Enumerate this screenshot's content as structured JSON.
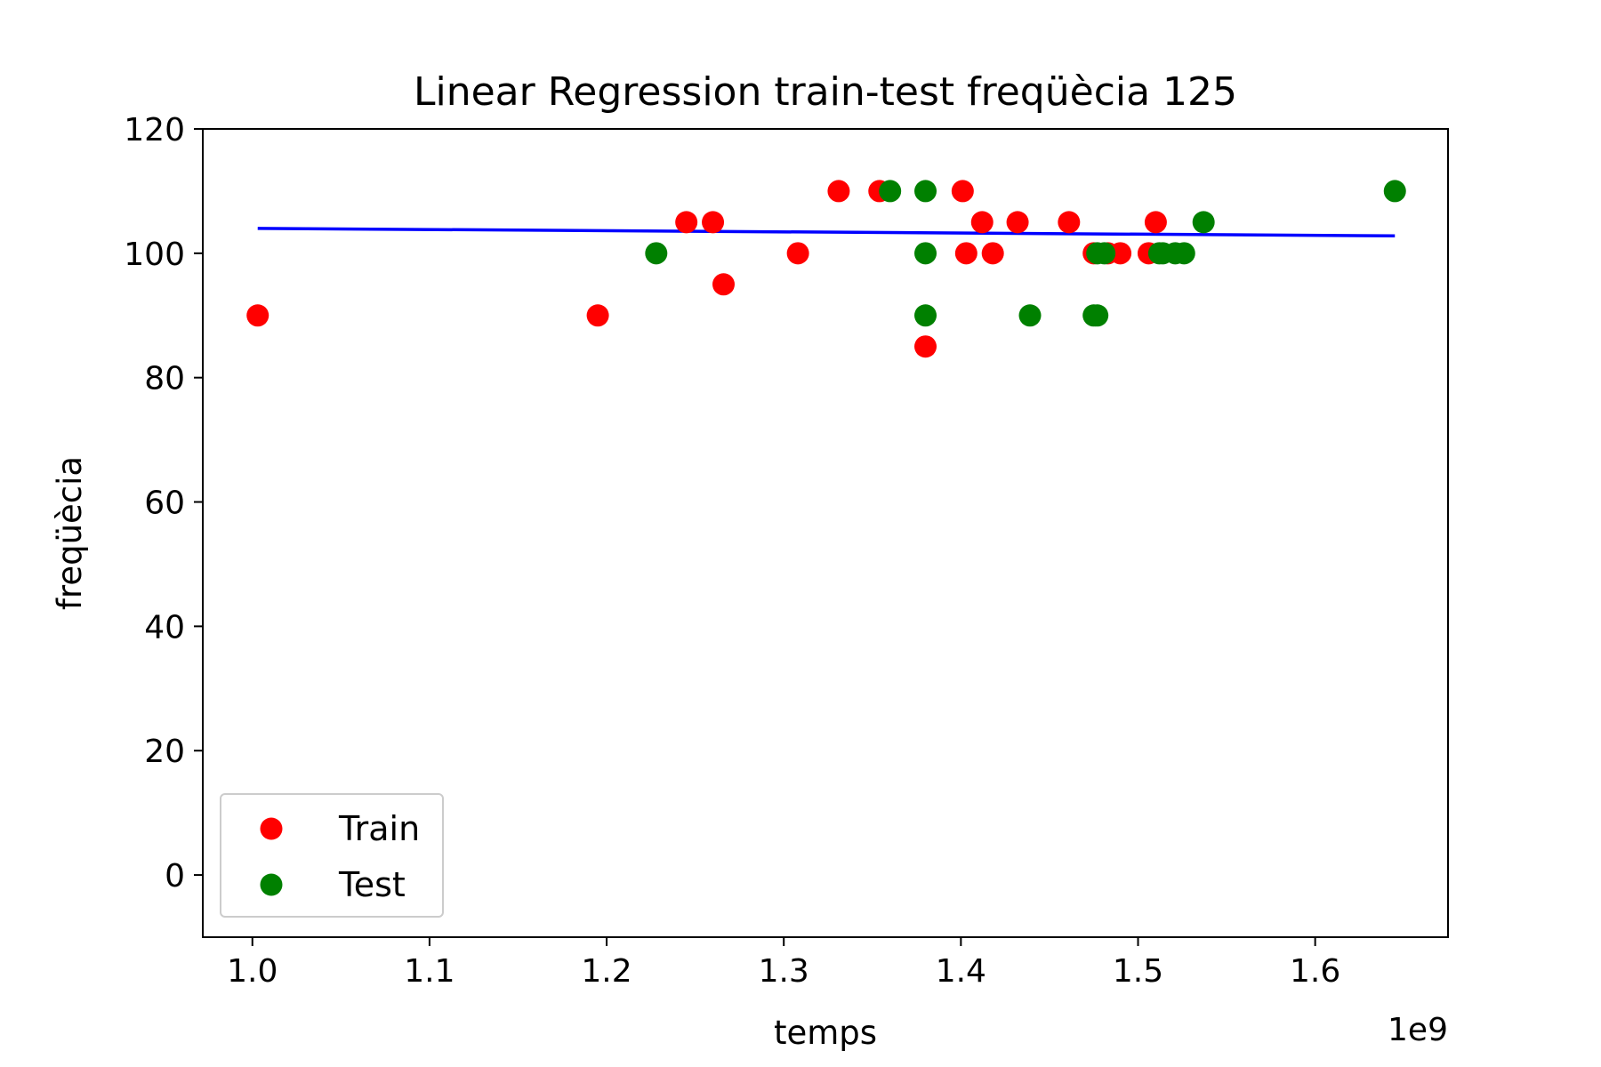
{
  "chart_data": {
    "type": "scatter",
    "title": "Linear Regression train-test freqüècia 125",
    "xlabel": "temps",
    "ylabel": "freqüècia",
    "x_offset_label": "1e9",
    "xlim": [
      0.972,
      1.675
    ],
    "ylim": [
      -10,
      120
    ],
    "x_ticks": [
      1.0,
      1.1,
      1.2,
      1.3,
      1.4,
      1.5,
      1.6
    ],
    "x_tick_labels": [
      "1.0",
      "1.1",
      "1.2",
      "1.3",
      "1.4",
      "1.5",
      "1.6"
    ],
    "y_ticks": [
      0,
      20,
      40,
      60,
      80,
      100,
      120
    ],
    "y_tick_labels": [
      "0",
      "20",
      "40",
      "60",
      "80",
      "100",
      "120"
    ],
    "grid": false,
    "legend_position": "lower-left",
    "series": [
      {
        "name": "Train",
        "color": "#ff0000",
        "kind": "scatter",
        "points": [
          [
            1.003,
            90
          ],
          [
            1.195,
            90
          ],
          [
            1.245,
            105
          ],
          [
            1.26,
            105
          ],
          [
            1.266,
            95
          ],
          [
            1.308,
            100
          ],
          [
            1.331,
            110
          ],
          [
            1.354,
            110
          ],
          [
            1.38,
            85
          ],
          [
            1.401,
            110
          ],
          [
            1.403,
            100
          ],
          [
            1.412,
            105
          ],
          [
            1.418,
            100
          ],
          [
            1.432,
            105
          ],
          [
            1.461,
            105
          ],
          [
            1.475,
            100
          ],
          [
            1.483,
            100
          ],
          [
            1.49,
            100
          ],
          [
            1.506,
            100
          ],
          [
            1.51,
            105
          ]
        ]
      },
      {
        "name": "Test",
        "color": "#008000",
        "kind": "scatter",
        "points": [
          [
            1.228,
            100
          ],
          [
            1.36,
            110
          ],
          [
            1.38,
            110
          ],
          [
            1.38,
            100
          ],
          [
            1.38,
            90
          ],
          [
            1.439,
            90
          ],
          [
            1.475,
            90
          ],
          [
            1.477,
            90
          ],
          [
            1.477,
            100
          ],
          [
            1.481,
            100
          ],
          [
            1.512,
            100
          ],
          [
            1.514,
            100
          ],
          [
            1.521,
            100
          ],
          [
            1.526,
            100
          ],
          [
            1.537,
            105
          ],
          [
            1.645,
            110
          ]
        ]
      }
    ],
    "regression_line": {
      "color": "#0000ff",
      "points": [
        [
          1.003,
          104.0
        ],
        [
          1.645,
          102.8
        ]
      ]
    }
  }
}
